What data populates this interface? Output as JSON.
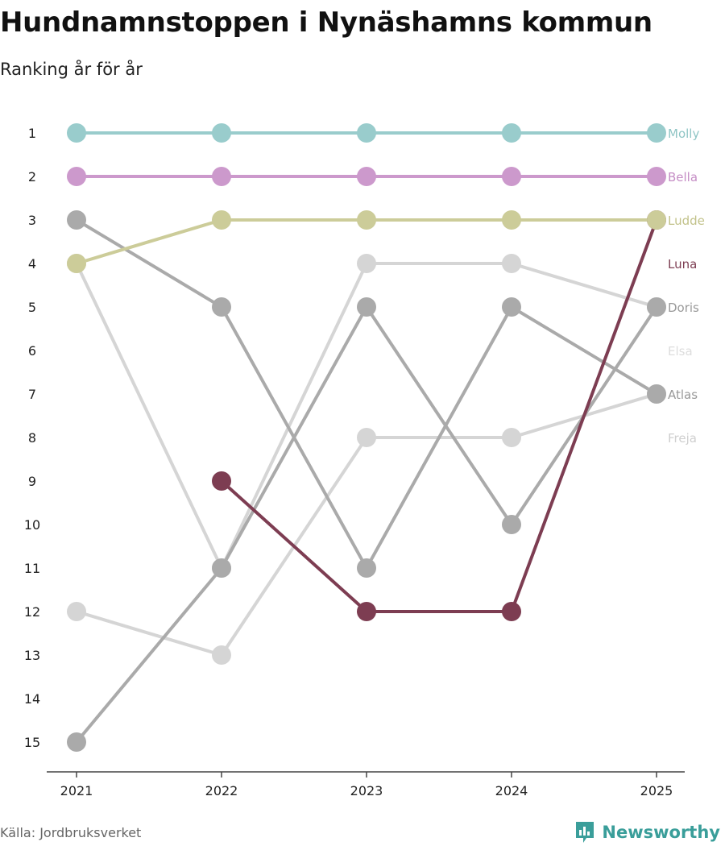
{
  "title": "Hundnamnstoppen i Nynäshamns kommun",
  "subtitle": "Ranking år för år",
  "source": "Källa: Jordbruksverket",
  "brand": "Newsworthy",
  "chart_data": {
    "type": "line",
    "chart_kind": "bump",
    "x": [
      "2021",
      "2022",
      "2023",
      "2024",
      "2025"
    ],
    "y_ticks": [
      "1",
      "2",
      "3",
      "4",
      "5",
      "6",
      "7",
      "8",
      "9",
      "10",
      "11",
      "12",
      "13",
      "14",
      "15"
    ],
    "ylim": [
      1,
      15
    ],
    "y_inverted": true,
    "series": [
      {
        "name": "Freja",
        "color": "#d5d5d5",
        "label_color": "#cfcfcf",
        "values": [
          12,
          13,
          8,
          8,
          7
        ]
      },
      {
        "name": "Elsa",
        "color": "#d5d5d5",
        "label_color": "#dddddd",
        "values": [
          4,
          11,
          4,
          4,
          5
        ]
      },
      {
        "name": "Atlas",
        "color": "#aaaaaa",
        "label_color": "#999999",
        "values": [
          3,
          5,
          11,
          5,
          7
        ]
      },
      {
        "name": "Doris",
        "color": "#aaaaaa",
        "label_color": "#999999",
        "values": [
          15,
          11,
          5,
          10,
          5
        ]
      },
      {
        "name": "Luna",
        "color": "#7d3d52",
        "label_color": "#7d3d52",
        "values": [
          null,
          9,
          12,
          12,
          3
        ]
      },
      {
        "name": "Ludde",
        "color": "#cccc99",
        "label_color": "#c2c28a",
        "values": [
          4,
          3,
          3,
          3,
          3
        ]
      },
      {
        "name": "Bella",
        "color": "#cc99cc",
        "label_color": "#c58dc5",
        "values": [
          2,
          2,
          2,
          2,
          2
        ]
      },
      {
        "name": "Molly",
        "color": "#99cccc",
        "label_color": "#8fc5c5",
        "values": [
          1,
          1,
          1,
          1,
          1
        ]
      }
    ],
    "label_order": [
      "Molly",
      "Bella",
      "Ludde",
      "Luna",
      "Doris",
      "Elsa",
      "Atlas",
      "Freja"
    ]
  }
}
